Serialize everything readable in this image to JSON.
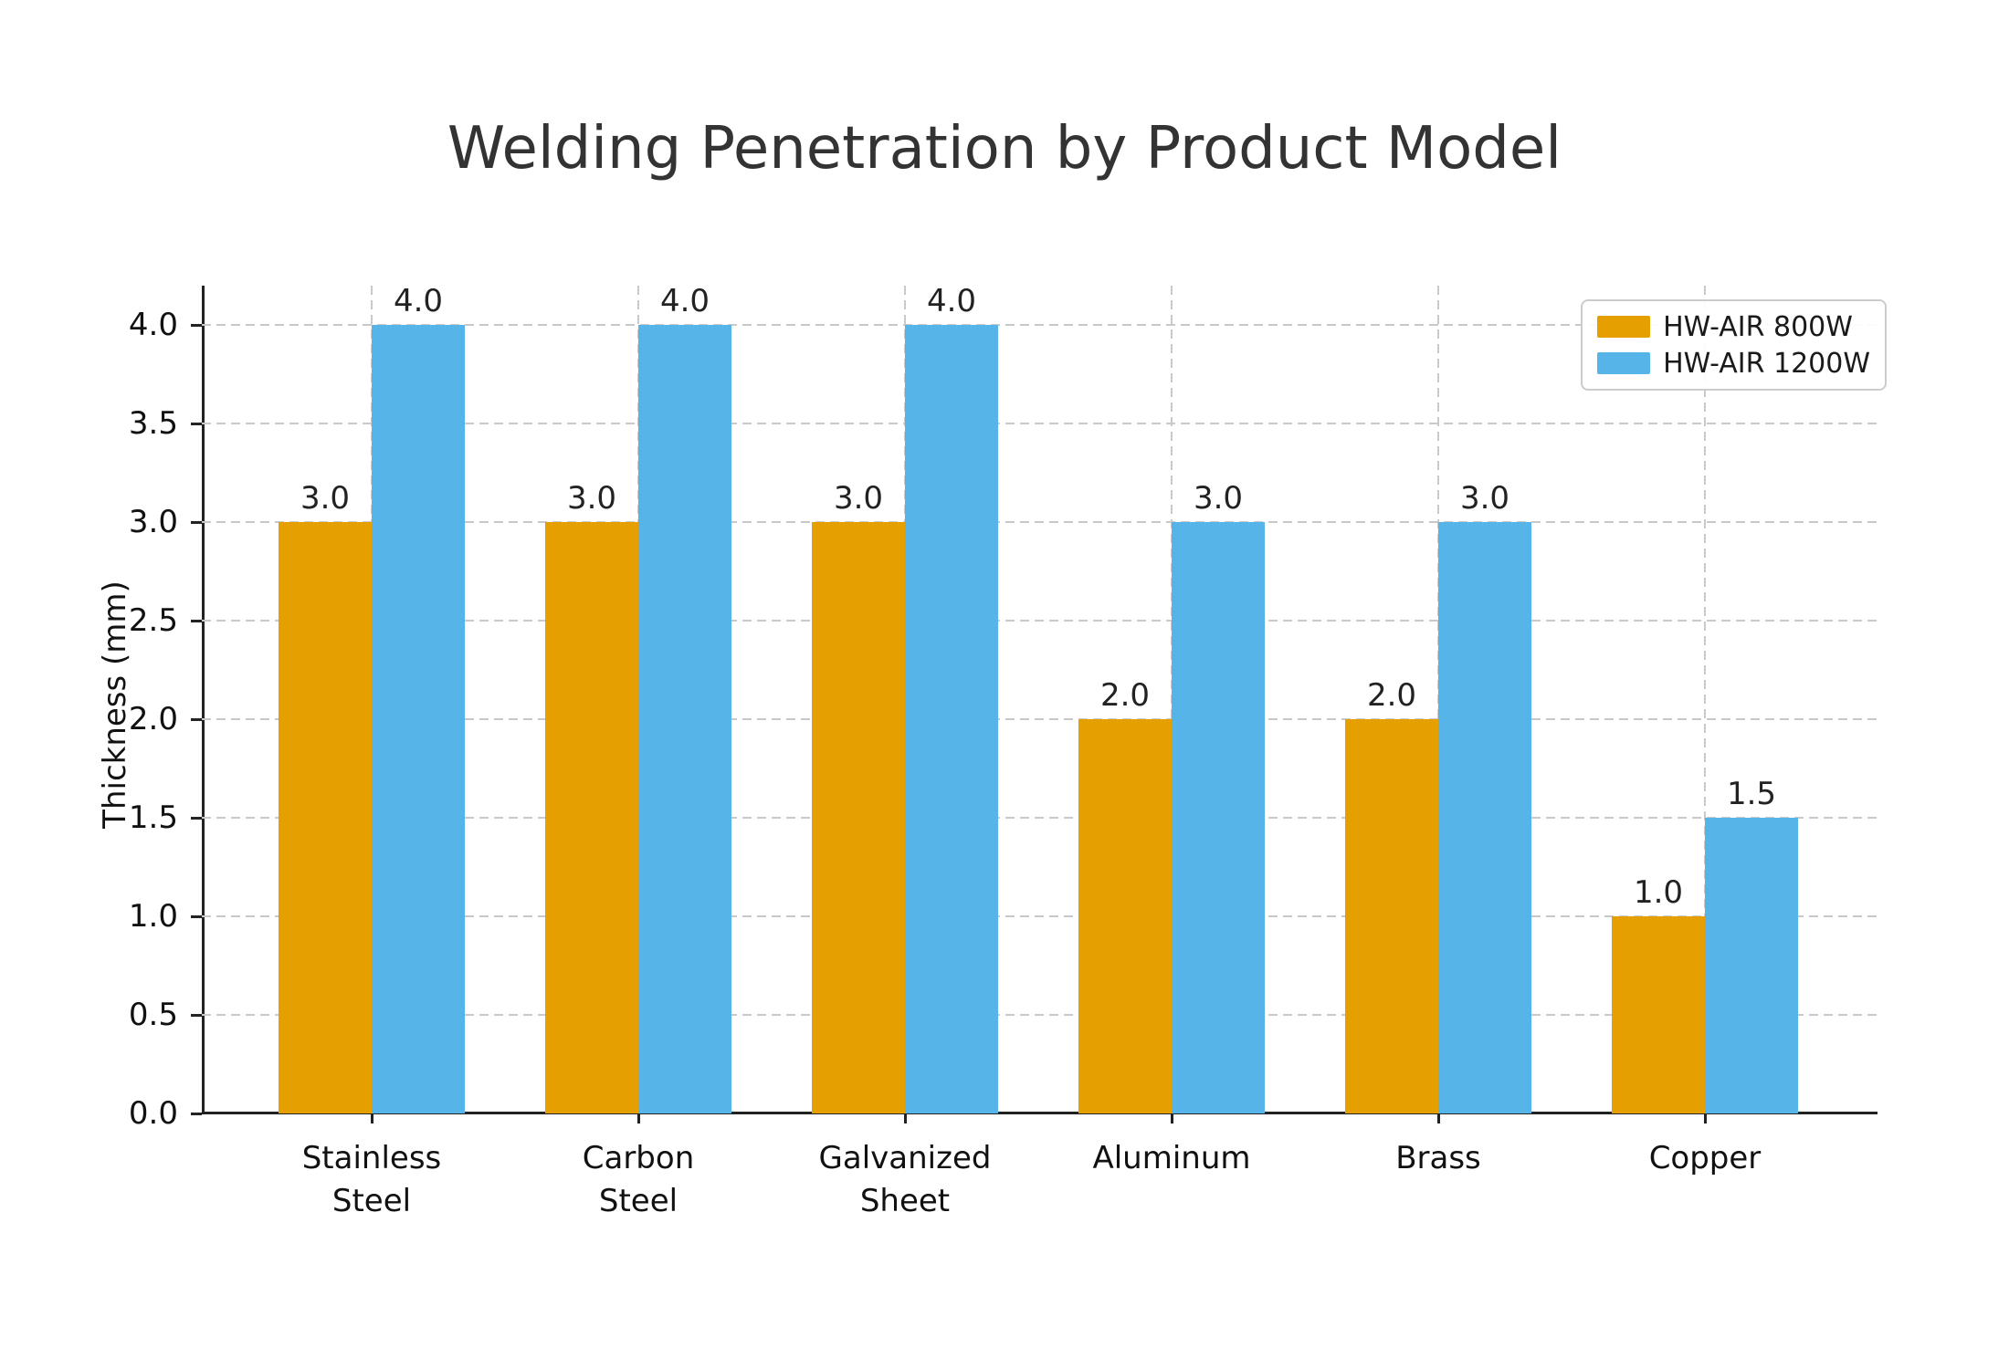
{
  "chart_data": {
    "type": "bar",
    "title": "Welding Penetration by Product Model",
    "ylabel": "Thickness (mm)",
    "xlabel": "",
    "categories": [
      "Stainless\nSteel",
      "Carbon\nSteel",
      "Galvanized\nSheet",
      "Aluminum",
      "Brass",
      "Copper"
    ],
    "series": [
      {
        "name": "HW-AIR 800W",
        "color": "#E69F00",
        "values": [
          3.0,
          3.0,
          3.0,
          2.0,
          2.0,
          1.0
        ],
        "labels": [
          "3.0",
          "3.0",
          "3.0",
          "2.0",
          "2.0",
          "1.0"
        ]
      },
      {
        "name": "HW-AIR 1200W",
        "color": "#56B4E9",
        "values": [
          4.0,
          4.0,
          4.0,
          3.0,
          3.0,
          1.5
        ],
        "labels": [
          "4.0",
          "4.0",
          "4.0",
          "3.0",
          "3.0",
          "1.5"
        ]
      }
    ],
    "yticks": [
      "0.0",
      "0.5",
      "1.0",
      "1.5",
      "2.0",
      "2.5",
      "3.0",
      "3.5",
      "4.0"
    ],
    "ylim": [
      0,
      4.2
    ],
    "grid": true,
    "grid_style": "dashed",
    "grid_color": "#c9c9c9",
    "legend_position": "upper right"
  }
}
